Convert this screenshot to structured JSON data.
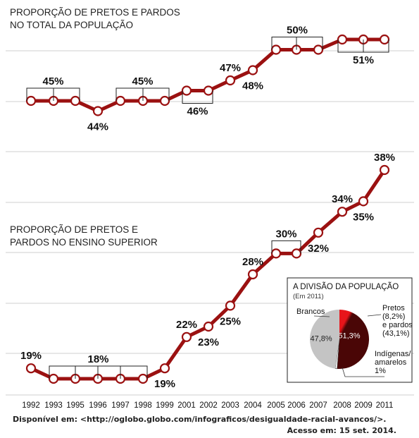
{
  "chart_data": [
    {
      "type": "line",
      "title": "PROPORÇÃO DE PRETOS E PARDOS\nNO TOTAL DA POPULAÇÃO",
      "x": [
        "1992",
        "1993",
        "1995",
        "1996",
        "1997",
        "1998",
        "1999",
        "2001",
        "2002",
        "2003",
        "2004",
        "2005",
        "2006",
        "2007",
        "2008",
        "2009",
        "2011"
      ],
      "values": [
        45,
        45,
        45,
        44,
        45,
        45,
        45,
        46,
        46,
        47,
        48,
        50,
        50,
        50,
        51,
        51,
        51
      ],
      "labels": [
        {
          "text": "45%",
          "from": 0,
          "to": 2,
          "pos": "above"
        },
        {
          "text": "44%",
          "from": 3,
          "to": 3,
          "pos": "below"
        },
        {
          "text": "45%",
          "from": 4,
          "to": 6,
          "pos": "above"
        },
        {
          "text": "46%",
          "from": 7,
          "to": 8,
          "pos": "below"
        },
        {
          "text": "47%",
          "from": 9,
          "to": 9,
          "pos": "above"
        },
        {
          "text": "48%",
          "from": 10,
          "to": 10,
          "pos": "below"
        },
        {
          "text": "50%",
          "from": 11,
          "to": 13,
          "pos": "above"
        },
        {
          "text": "51%",
          "from": 14,
          "to": 16,
          "pos": "below"
        }
      ]
    },
    {
      "type": "line",
      "title": "PROPORÇÃO DE PRETOS E\nPARDOS NO ENSINO SUPERIOR",
      "x": [
        "1992",
        "1993",
        "1995",
        "1996",
        "1997",
        "1998",
        "1999",
        "2001",
        "2002",
        "2003",
        "2004",
        "2005",
        "2006",
        "2007",
        "2008",
        "2009",
        "2011"
      ],
      "values": [
        19,
        18,
        18,
        18,
        18,
        18,
        19,
        22,
        23,
        25,
        28,
        30,
        30,
        32,
        34,
        35,
        38
      ],
      "labels": [
        {
          "text": "19%",
          "from": 0,
          "to": 0,
          "pos": "above"
        },
        {
          "text": "18%",
          "from": 1,
          "to": 5,
          "pos": "above"
        },
        {
          "text": "19%",
          "from": 6,
          "to": 6,
          "pos": "below"
        },
        {
          "text": "22%",
          "from": 7,
          "to": 7,
          "pos": "above"
        },
        {
          "text": "23%",
          "from": 8,
          "to": 8,
          "pos": "below"
        },
        {
          "text": "25%",
          "from": 9,
          "to": 9,
          "pos": "below"
        },
        {
          "text": "28%",
          "from": 10,
          "to": 10,
          "pos": "above"
        },
        {
          "text": "30%",
          "from": 11,
          "to": 12,
          "pos": "above"
        },
        {
          "text": "32%",
          "from": 13,
          "to": 13,
          "pos": "below"
        },
        {
          "text": "34%",
          "from": 14,
          "to": 14,
          "pos": "above"
        },
        {
          "text": "35%",
          "from": 15,
          "to": 15,
          "pos": "below"
        },
        {
          "text": "38%",
          "from": 16,
          "to": 16,
          "pos": "above"
        }
      ]
    },
    {
      "type": "pie",
      "title": "A DIVISÃO DA POPULAÇÃO",
      "subtitle": "(Em 2011)",
      "slices": [
        {
          "label": "Pretos (8,2%) e pardos (43,1%)",
          "value": 51.3,
          "inside": "51,3%"
        },
        {
          "label": "Indígenas/ amarelos 1%",
          "value": 1.0
        },
        {
          "label": "Brancos",
          "value": 47.8,
          "inside": "47,8%"
        }
      ],
      "colors": [
        "#e8151a",
        "#4a0606",
        "#ffffff",
        "#c4c4c4"
      ]
    }
  ],
  "pie_labels": {
    "pretos": [
      "Pretos",
      "(8,2%)",
      "e pardos",
      "(43,1%)"
    ],
    "indigenas": [
      "Indígenas/",
      "amarelos",
      "1%"
    ],
    "brancos": "Brancos"
  },
  "source": {
    "line1": "Disponível em: <http://oglobo.globo.com/infograficos/desigualdade-racial-avancos/>.",
    "line2": "Acesso em: 15 set. 2014."
  }
}
